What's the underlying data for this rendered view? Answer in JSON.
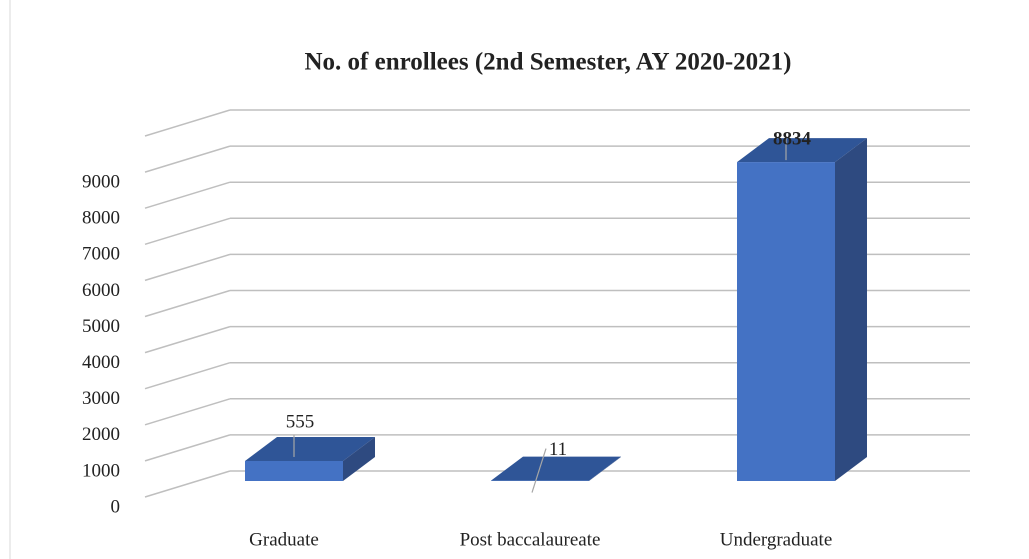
{
  "chart_data": {
    "type": "bar3d",
    "title": "No. of enrollees (2nd Semester, AY 2020-2021)",
    "categories": [
      "Graduate",
      "Post baccalaureate",
      "Undergraduate"
    ],
    "values": [
      555,
      11,
      8834
    ],
    "color": "#4472c4",
    "ylim": [
      0,
      10000
    ],
    "yticks": [
      0,
      1000,
      2000,
      3000,
      4000,
      5000,
      6000,
      7000,
      8000,
      9000
    ],
    "grid": true
  }
}
